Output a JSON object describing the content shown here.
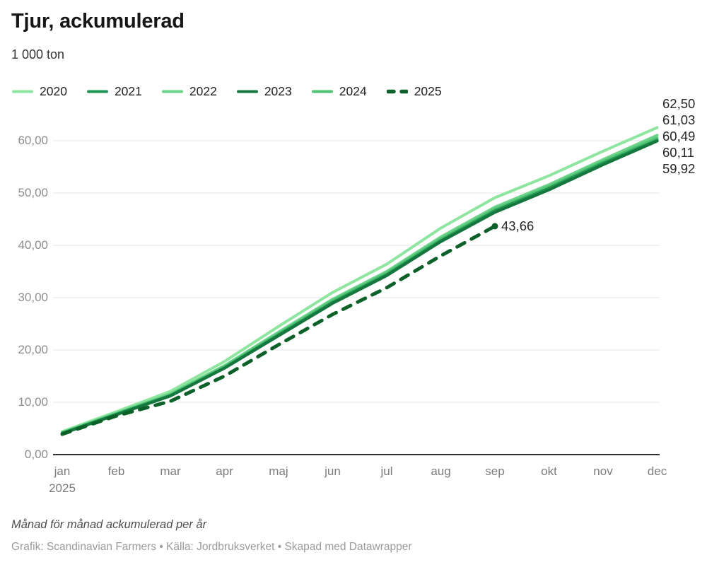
{
  "header": {
    "title": "Tjur, ackumulerad",
    "subtitle": "1 000 ton"
  },
  "chart_data": {
    "type": "line",
    "title": "Tjur, ackumulerad",
    "ylabel": "1 000 ton",
    "x": [
      "jan",
      "feb",
      "mar",
      "apr",
      "maj",
      "jun",
      "jul",
      "aug",
      "sep",
      "okt",
      "nov",
      "dec"
    ],
    "x_sublabel": "2025",
    "ylim": [
      0,
      65
    ],
    "grid": "horizontal",
    "legend_position": "top",
    "yticks": [
      {
        "value": 0,
        "label": "0,00"
      },
      {
        "value": 10,
        "label": "10,00"
      },
      {
        "value": 20,
        "label": "20,00"
      },
      {
        "value": 30,
        "label": "30,00"
      },
      {
        "value": 40,
        "label": "40,00"
      },
      {
        "value": 50,
        "label": "50,00"
      },
      {
        "value": 60,
        "label": "60,00"
      }
    ],
    "series": [
      {
        "name": "2020",
        "color": "#8ee59f",
        "dashed": false,
        "end_label": "62,50",
        "values": [
          4.4,
          8.2,
          12.1,
          17.8,
          24.5,
          31.0,
          36.4,
          43.3,
          49.1,
          53.3,
          58.0,
          62.5
        ]
      },
      {
        "name": "2021",
        "color": "#1f9552",
        "dashed": false,
        "end_label": "60,11",
        "values": [
          4.1,
          7.7,
          11.3,
          16.6,
          22.9,
          29.1,
          34.4,
          40.9,
          46.6,
          50.9,
          55.7,
          60.11
        ]
      },
      {
        "name": "2022",
        "color": "#6bd389",
        "dashed": false,
        "end_label": "61,03",
        "values": [
          4.2,
          7.9,
          11.6,
          17.0,
          23.4,
          29.7,
          35.0,
          41.6,
          47.3,
          51.6,
          56.4,
          61.03
        ]
      },
      {
        "name": "2023",
        "color": "#15773d",
        "dashed": false,
        "end_label": "59,92",
        "values": [
          4.0,
          7.6,
          11.2,
          16.5,
          22.7,
          28.9,
          34.2,
          40.7,
          46.3,
          50.6,
          55.4,
          59.92
        ]
      },
      {
        "name": "2024",
        "color": "#4fc173",
        "dashed": false,
        "end_label": "60,49",
        "values": [
          4.15,
          7.8,
          11.4,
          16.8,
          23.1,
          29.4,
          34.7,
          41.2,
          46.9,
          51.2,
          56.0,
          60.49
        ]
      },
      {
        "name": "2025",
        "color": "#0c6128",
        "dashed": true,
        "end_label": "43,66",
        "end_marker": "dot",
        "values": [
          3.9,
          7.4,
          10.2,
          15.0,
          21.0,
          26.8,
          31.9,
          38.0,
          43.66
        ]
      }
    ],
    "draw_order": [
      "2020",
      "2022",
      "2024",
      "2021",
      "2023",
      "2025"
    ]
  },
  "footer": {
    "notes": "Månad för månad ackumulerad per år",
    "byline": "Grafik: Scandinavian Farmers • Källa: Jordbruksverket • Skapad med Datawrapper"
  }
}
